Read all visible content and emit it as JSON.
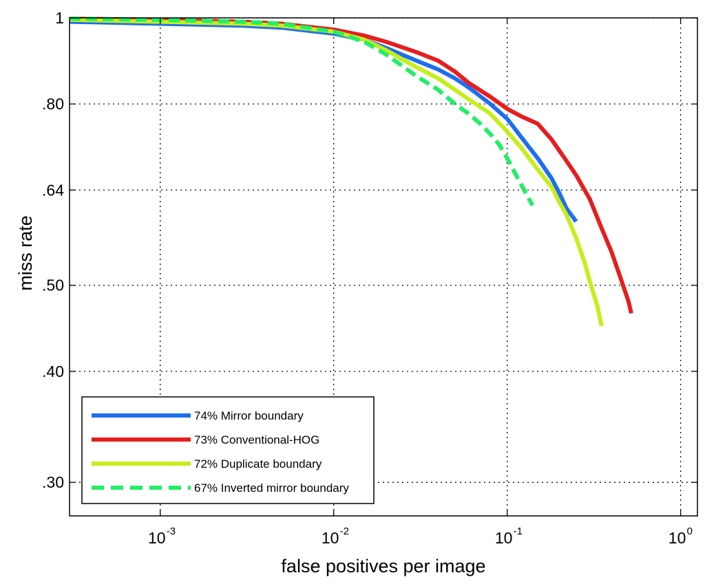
{
  "chart_data": {
    "type": "line",
    "title": "",
    "xlabel": "false positives per image",
    "ylabel": "miss rate",
    "x_scale": "log",
    "y_scale": "log",
    "xlim": [
      0.0003,
      1.25
    ],
    "ylim": [
      0.275,
      1.0
    ],
    "x_ticks": [
      {
        "value": 0.001,
        "base": "10",
        "exp": "-3"
      },
      {
        "value": 0.01,
        "base": "10",
        "exp": "-2"
      },
      {
        "value": 0.1,
        "base": "10",
        "exp": "-1"
      },
      {
        "value": 1,
        "base": "10",
        "exp": "0"
      }
    ],
    "y_ticks": [
      {
        "value": 0.3,
        "label": ".30"
      },
      {
        "value": 0.4,
        "label": ".40"
      },
      {
        "value": 0.5,
        "label": ".50"
      },
      {
        "value": 0.64,
        "label": ".64"
      },
      {
        "value": 0.8,
        "label": ".80"
      },
      {
        "value": 1.0,
        "label": "1"
      }
    ],
    "grid": true,
    "legend_position": "bottom-left",
    "series": [
      {
        "name": "74% Mirror boundary",
        "color": "#1e6ef0",
        "dash": "solid",
        "x": [
          0.0003,
          0.001,
          0.003,
          0.005,
          0.01,
          0.015,
          0.02,
          0.03,
          0.04,
          0.05,
          0.06,
          0.08,
          0.1,
          0.12,
          0.15,
          0.18,
          0.2,
          0.22,
          0.25
        ],
        "y": [
          0.99,
          0.985,
          0.98,
          0.975,
          0.96,
          0.945,
          0.925,
          0.895,
          0.875,
          0.855,
          0.835,
          0.8,
          0.77,
          0.735,
          0.695,
          0.66,
          0.635,
          0.61,
          0.59
        ]
      },
      {
        "name": "73% Conventional-HOG",
        "color": "#e61e1e",
        "dash": "solid",
        "x": [
          0.0003,
          0.001,
          0.003,
          0.005,
          0.01,
          0.015,
          0.02,
          0.03,
          0.04,
          0.05,
          0.06,
          0.08,
          0.1,
          0.12,
          0.15,
          0.18,
          0.22,
          0.25,
          0.3,
          0.35,
          0.4,
          0.45,
          0.5,
          0.52
        ],
        "y": [
          0.998,
          0.995,
          0.99,
          0.985,
          0.97,
          0.955,
          0.94,
          0.915,
          0.895,
          0.87,
          0.845,
          0.815,
          0.79,
          0.775,
          0.76,
          0.73,
          0.69,
          0.665,
          0.625,
          0.58,
          0.545,
          0.51,
          0.48,
          0.465
        ]
      },
      {
        "name": "72% Duplicate boundary",
        "color": "#c6ee1a",
        "dash": "solid",
        "x": [
          0.0003,
          0.001,
          0.003,
          0.005,
          0.01,
          0.015,
          0.02,
          0.03,
          0.04,
          0.05,
          0.06,
          0.08,
          0.1,
          0.12,
          0.15,
          0.18,
          0.2,
          0.22,
          0.25,
          0.28,
          0.3,
          0.33,
          0.35
        ],
        "y": [
          0.995,
          0.99,
          0.985,
          0.98,
          0.965,
          0.945,
          0.92,
          0.88,
          0.855,
          0.83,
          0.81,
          0.78,
          0.745,
          0.715,
          0.675,
          0.645,
          0.62,
          0.6,
          0.565,
          0.53,
          0.505,
          0.475,
          0.45
        ]
      },
      {
        "name": "67% Inverted mirror boundary",
        "color": "#22ee66",
        "dash": "dashed",
        "x": [
          0.0003,
          0.001,
          0.003,
          0.005,
          0.01,
          0.015,
          0.02,
          0.03,
          0.04,
          0.05,
          0.06,
          0.07,
          0.08,
          0.09,
          0.1,
          0.12,
          0.14
        ],
        "y": [
          0.998,
          0.995,
          0.99,
          0.985,
          0.965,
          0.94,
          0.91,
          0.86,
          0.83,
          0.8,
          0.78,
          0.76,
          0.74,
          0.72,
          0.695,
          0.65,
          0.615
        ]
      }
    ]
  }
}
